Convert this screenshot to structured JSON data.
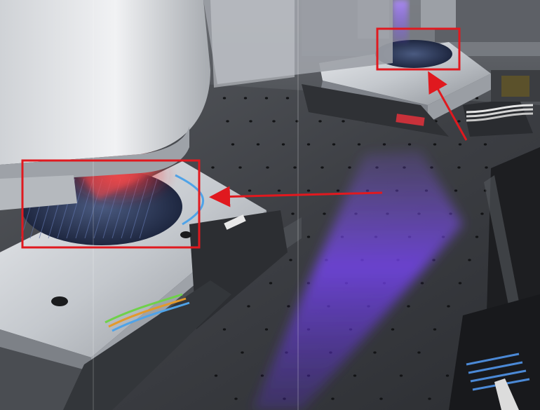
{
  "scene": {
    "caption": "",
    "colors": {
      "table": "#3a3c41",
      "table_edge": "#505359",
      "machine_silver": "#c9ccd1",
      "machine_shadow": "#8e9298",
      "wafer": "#2b3a5c",
      "red_glow": "#ff3a3a",
      "purple_glow": "#7a4bff",
      "annotation_red": "#e0191f"
    }
  },
  "annotations": [
    {
      "kind": "highlight-box",
      "target": "large-wafer-stage"
    },
    {
      "kind": "highlight-box",
      "target": "small-wafer-stage"
    },
    {
      "kind": "arrow",
      "from": "purple-beam",
      "to": "large-wafer-stage"
    },
    {
      "kind": "arrow",
      "from": "cable-connector",
      "to": "small-wafer-stage"
    }
  ]
}
